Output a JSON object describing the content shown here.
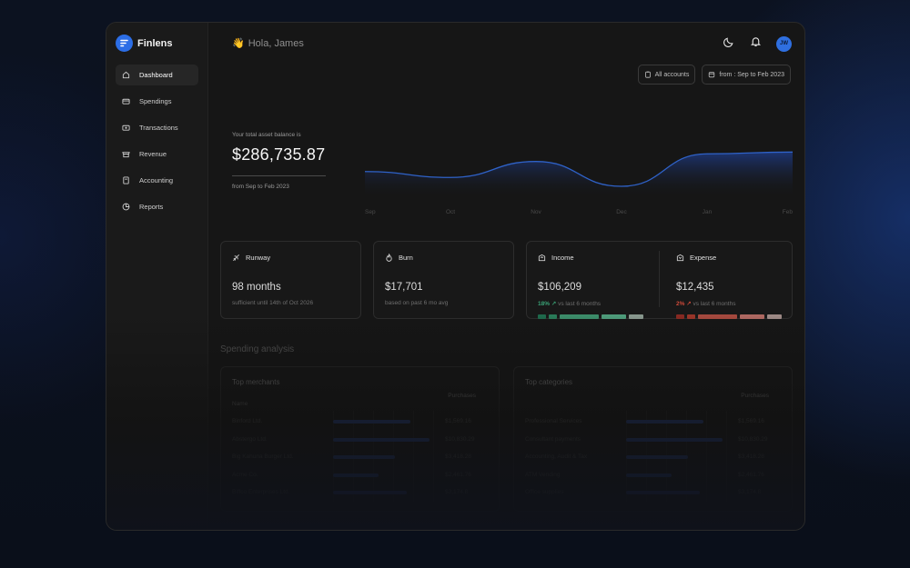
{
  "app": {
    "name": "Finlens"
  },
  "sidebar": {
    "items": [
      {
        "label": "Dashboard",
        "icon": "home-icon",
        "active": true
      },
      {
        "label": "Spendings",
        "icon": "card-icon"
      },
      {
        "label": "Transactions",
        "icon": "transfer-icon"
      },
      {
        "label": "Revenue",
        "icon": "store-icon"
      },
      {
        "label": "Accounting",
        "icon": "ledger-icon"
      },
      {
        "label": "Reports",
        "icon": "pie-icon"
      }
    ]
  },
  "header": {
    "greeting_emoji": "👋",
    "greeting": "Hola, James",
    "avatar_initials": "JW"
  },
  "filters": {
    "accounts_label": "All accounts",
    "date_label": "from : Sep to Feb 2023"
  },
  "balance": {
    "label": "Your total asset balance is",
    "value": "$286,735.87",
    "range": "from Sep to Feb 2023"
  },
  "chart_data": {
    "type": "area",
    "x": [
      "Sep",
      "Oct",
      "Nov",
      "Dec",
      "Jan",
      "Feb"
    ],
    "series": [
      {
        "values": [
          0.45,
          0.35,
          0.62,
          0.2,
          0.75,
          0.78
        ]
      }
    ],
    "xlabel": "",
    "ylabel": "",
    "grid": false,
    "colors": {
      "line": "#2f62c8",
      "fill_top": "#1e3a82"
    }
  },
  "cards": {
    "runway": {
      "title": "Runway",
      "value": "98 months",
      "sub": "sufficient until 14th of Oct 2026"
    },
    "burn": {
      "title": "Burn",
      "value": "$17,701",
      "sub": "based on past 6 mo avg"
    },
    "income": {
      "title": "Income",
      "value": "$106,209",
      "pct": "18%",
      "sub": "vs last 6 months"
    },
    "expense": {
      "title": "Expense",
      "value": "$12,435",
      "pct": "2%",
      "sub": "vs last 6 months"
    }
  },
  "spending": {
    "title": "Spending analysis",
    "merchants": {
      "title": "Top merchants",
      "col_name": "Name",
      "col_purchases": "Purchases",
      "rows": [
        {
          "name": "Binford Ltd.",
          "value": "$1,569.16",
          "share": 0.8
        },
        {
          "name": "Abstergo Ltd.",
          "value": "$10,830.29",
          "share": 1.0
        },
        {
          "name": "Big Kahuna Burger Ltd.",
          "value": "$3,418.28",
          "share": 0.64
        },
        {
          "name": "Acme Co.",
          "value": "$2,461.76",
          "share": 0.47
        },
        {
          "name": "Biffco Enterprises Ltd.",
          "value": "$3,174.8",
          "share": 0.76
        }
      ]
    },
    "categories": {
      "title": "Top categories",
      "col_purchases": "Purchases",
      "rows": [
        {
          "name": "Professional Services",
          "value": "$1,569.16",
          "share": 0.8
        },
        {
          "name": "Consultant payments",
          "value": "$10,830.29",
          "share": 1.0
        },
        {
          "name": "Accounting, Audit & Tax",
          "value": "$3,418.28",
          "share": 0.64
        },
        {
          "name": "ATM Vending",
          "value": "$2,461.76",
          "share": 0.47
        },
        {
          "name": "Office supplies",
          "value": "$3,174.8",
          "share": 0.76
        }
      ]
    }
  }
}
